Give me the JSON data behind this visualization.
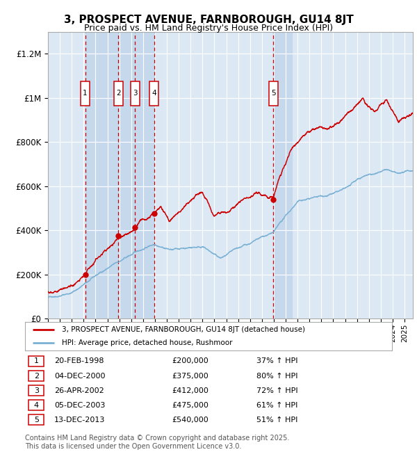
{
  "title": "3, PROSPECT AVENUE, FARNBOROUGH, GU14 8JT",
  "subtitle": "Price paid vs. HM Land Registry's House Price Index (HPI)",
  "title_fontsize": 11,
  "subtitle_fontsize": 9,
  "ylim": [
    0,
    1300000
  ],
  "xlim_start": 1995.0,
  "xlim_end": 2025.7,
  "yticks": [
    0,
    200000,
    400000,
    600000,
    800000,
    1000000,
    1200000
  ],
  "ytick_labels": [
    "£0",
    "£200K",
    "£400K",
    "£600K",
    "£800K",
    "£1M",
    "£1.2M"
  ],
  "background_color": "#ffffff",
  "plot_bg_color": "#dce9f5",
  "grid_color": "#ffffff",
  "sale_dates": [
    1998.13,
    2000.92,
    2002.32,
    2003.92,
    2013.95
  ],
  "sale_prices": [
    200000,
    375000,
    412000,
    475000,
    540000
  ],
  "sale_labels": [
    "1",
    "2",
    "3",
    "4",
    "5"
  ],
  "dashed_line_color": "#cc0000",
  "sale_dot_color": "#cc0000",
  "red_line_color": "#cc0000",
  "blue_line_color": "#7ab0d4",
  "shade_pairs": [
    [
      1998.13,
      2000.92
    ],
    [
      2000.92,
      2002.32
    ],
    [
      2002.32,
      2003.92
    ],
    [
      2013.95,
      2015.5
    ]
  ],
  "shade_color": "#c5d8ec",
  "legend_red_label": "3, PROSPECT AVENUE, FARNBOROUGH, GU14 8JT (detached house)",
  "legend_blue_label": "HPI: Average price, detached house, Rushmoor",
  "table_rows": [
    [
      "1",
      "20-FEB-1998",
      "£200,000",
      "37% ↑ HPI"
    ],
    [
      "2",
      "04-DEC-2000",
      "£375,000",
      "80% ↑ HPI"
    ],
    [
      "3",
      "26-APR-2002",
      "£412,000",
      "72% ↑ HPI"
    ],
    [
      "4",
      "05-DEC-2003",
      "£475,000",
      "61% ↑ HPI"
    ],
    [
      "5",
      "13-DEC-2013",
      "£540,000",
      "51% ↑ HPI"
    ]
  ],
  "footnote": "Contains HM Land Registry data © Crown copyright and database right 2025.\nThis data is licensed under the Open Government Licence v3.0.",
  "footnote_fontsize": 7
}
